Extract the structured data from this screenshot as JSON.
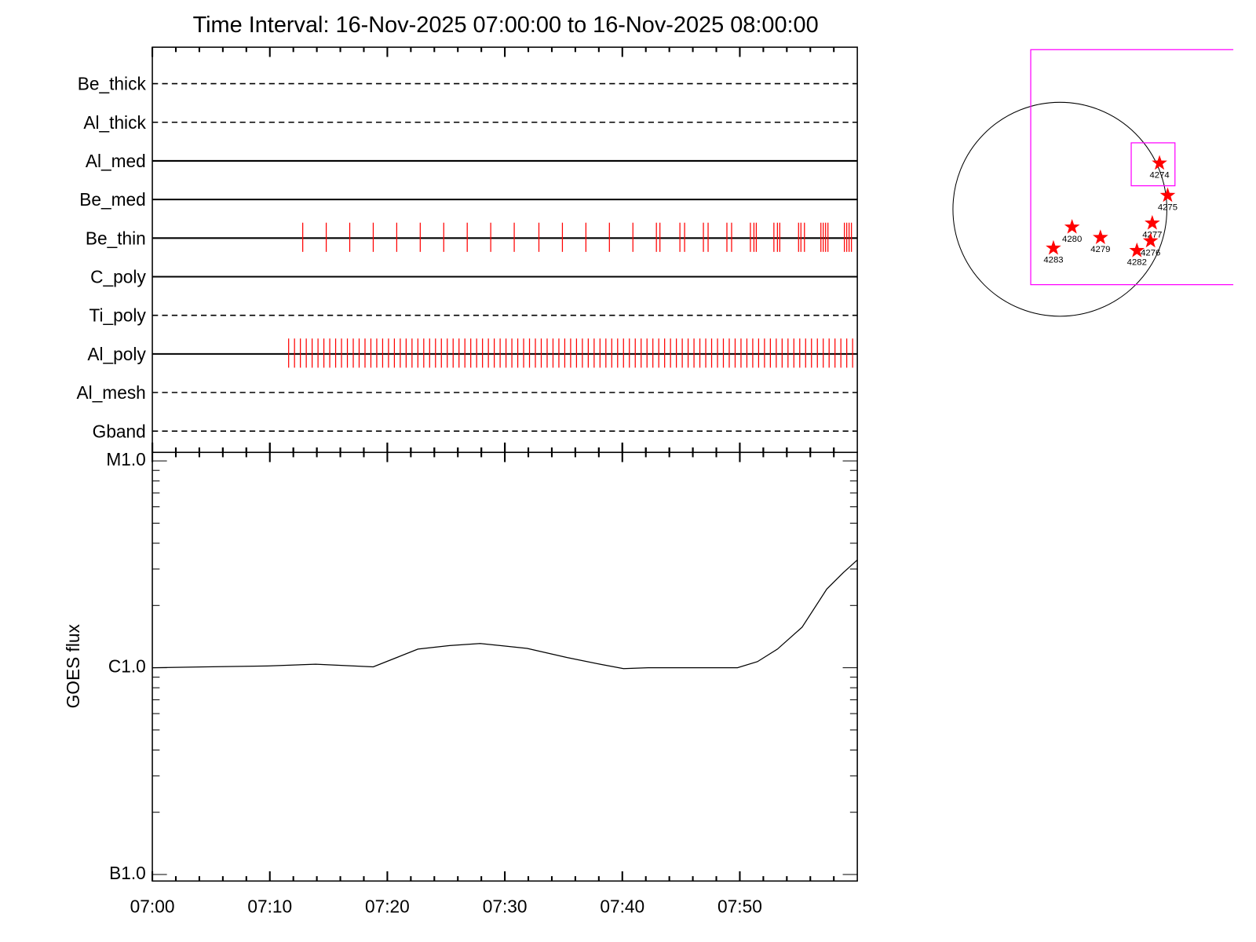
{
  "chart_data": [
    {
      "type": "timeline",
      "title": "Time Interval: 16-Nov-2025 07:00:00 to 16-Nov-2025 08:00:00",
      "xlim": [
        0,
        60
      ],
      "xticks": [
        0,
        10,
        20,
        30,
        40,
        50
      ],
      "xminorticks": [
        2,
        4,
        6,
        8,
        12,
        14,
        16,
        18,
        22,
        24,
        26,
        28,
        32,
        34,
        36,
        38,
        42,
        44,
        46,
        48,
        52,
        54,
        56,
        58
      ],
      "exposure_color": "#ff0000",
      "rows": [
        {
          "name": "Be_thick",
          "linestyle": "dashed",
          "exposures": []
        },
        {
          "name": "Al_thick",
          "linestyle": "dashed",
          "exposures": []
        },
        {
          "name": "Al_med",
          "linestyle": "solid",
          "exposures": []
        },
        {
          "name": "Be_med",
          "linestyle": "solid",
          "exposures": []
        },
        {
          "name": "Be_thin",
          "linestyle": "solid",
          "exposures": [
            12.8,
            14.8,
            16.8,
            18.8,
            20.8,
            22.8,
            24.8,
            26.8,
            28.8,
            30.8,
            32.9,
            34.9,
            36.9,
            38.9,
            40.9,
            42.9,
            43.2,
            44.9,
            45.3,
            46.9,
            47.3,
            48.9,
            49.3,
            50.9,
            51.2,
            51.4,
            52.9,
            53.2,
            53.4,
            55.0,
            55.2,
            55.5,
            56.9,
            57.1,
            57.3,
            57.5,
            58.9,
            59.1,
            59.3,
            59.5
          ]
        },
        {
          "name": "C_poly",
          "linestyle": "solid",
          "exposures": []
        },
        {
          "name": "Ti_poly",
          "linestyle": "dashed",
          "exposures": []
        },
        {
          "name": "Al_poly",
          "linestyle": "solid",
          "exposures": [
            11.6,
            12.1,
            12.6,
            13.1,
            13.6,
            14.1,
            14.6,
            15.1,
            15.6,
            16.1,
            16.6,
            17.1,
            17.6,
            18.1,
            18.6,
            19.1,
            19.6,
            20.1,
            20.6,
            21.1,
            21.6,
            22.1,
            22.6,
            23.1,
            23.6,
            24.1,
            24.6,
            25.1,
            25.6,
            26.1,
            26.6,
            27.1,
            27.6,
            28.1,
            28.6,
            29.1,
            29.6,
            30.1,
            30.6,
            31.1,
            31.6,
            32.1,
            32.6,
            33.1,
            33.6,
            34.1,
            34.6,
            35.1,
            35.6,
            36.1,
            36.6,
            37.1,
            37.6,
            38.1,
            38.6,
            39.1,
            39.6,
            40.1,
            40.6,
            41.1,
            41.6,
            42.1,
            42.6,
            43.1,
            43.6,
            44.1,
            44.6,
            45.1,
            45.6,
            46.1,
            46.6,
            47.1,
            47.6,
            48.1,
            48.6,
            49.1,
            49.6,
            50.1,
            50.6,
            51.1,
            51.6,
            52.1,
            52.6,
            53.1,
            53.6,
            54.1,
            54.6,
            55.1,
            55.6,
            56.1,
            56.6,
            57.1,
            57.6,
            58.1,
            58.6,
            59.1,
            59.6
          ]
        },
        {
          "name": "Al_mesh",
          "linestyle": "dashed",
          "exposures": []
        },
        {
          "name": "Gband",
          "linestyle": "dashed",
          "exposures": []
        }
      ]
    },
    {
      "type": "line",
      "ylabel": "GOES flux",
      "color": "#000000",
      "log_scale": true,
      "x": [
        0,
        9.8,
        13.9,
        18.8,
        20.8,
        22.6,
        25.3,
        27.9,
        31.9,
        35.3,
        38.1,
        40.1,
        42.2,
        44.3,
        49.8,
        51.5,
        53.2,
        55.3,
        57.4,
        58.8,
        60
      ],
      "values": [
        1e-06,
        1.02e-06,
        1.04e-06,
        1.01e-06,
        1.12e-06,
        1.23e-06,
        1.28e-06,
        1.31e-06,
        1.24e-06,
        1.12e-06,
        1.04e-06,
        9.9e-07,
        1e-06,
        1e-06,
        1e-06,
        1.07e-06,
        1.23e-06,
        1.57e-06,
        2.4e-06,
        2.88e-06,
        3.32e-06
      ],
      "xlim": [
        0,
        60
      ],
      "xticks": [
        {
          "value": 0,
          "label": "07:00"
        },
        {
          "value": 10,
          "label": "07:10"
        },
        {
          "value": 20,
          "label": "07:20"
        },
        {
          "value": 30,
          "label": "07:30"
        },
        {
          "value": 40,
          "label": "07:40"
        },
        {
          "value": 50,
          "label": "07:50"
        }
      ],
      "xminorticks": [
        2,
        4,
        6,
        8,
        12,
        14,
        16,
        18,
        22,
        24,
        26,
        28,
        32,
        34,
        36,
        38,
        42,
        44,
        46,
        48,
        52,
        54,
        56,
        58
      ],
      "ylim": [
        9.3e-08,
        1.1e-05
      ],
      "yticks": [
        {
          "value": 1e-07,
          "label": "B1.0"
        },
        {
          "value": 1e-06,
          "label": "C1.0"
        },
        {
          "value": 1e-05,
          "label": "M1.0"
        }
      ],
      "yminorticks": [
        2e-07,
        3e-07,
        4e-07,
        5e-07,
        6e-07,
        7e-07,
        8e-07,
        9e-07,
        2e-06,
        3e-06,
        4e-06,
        5e-06,
        6e-06,
        7e-06,
        8e-06,
        9e-06
      ]
    },
    {
      "type": "scatter",
      "color": "#ff0000",
      "labels": [
        "4274",
        "4275",
        "4277",
        "4276",
        "4282",
        "4279",
        "4280",
        "4283"
      ],
      "x": [
        894,
        967,
        829,
        814,
        691,
        364,
        109,
        -58
      ],
      "y": [
        414,
        124,
        -124,
        -284,
        -371,
        -254,
        -160,
        -349
      ]
    }
  ]
}
